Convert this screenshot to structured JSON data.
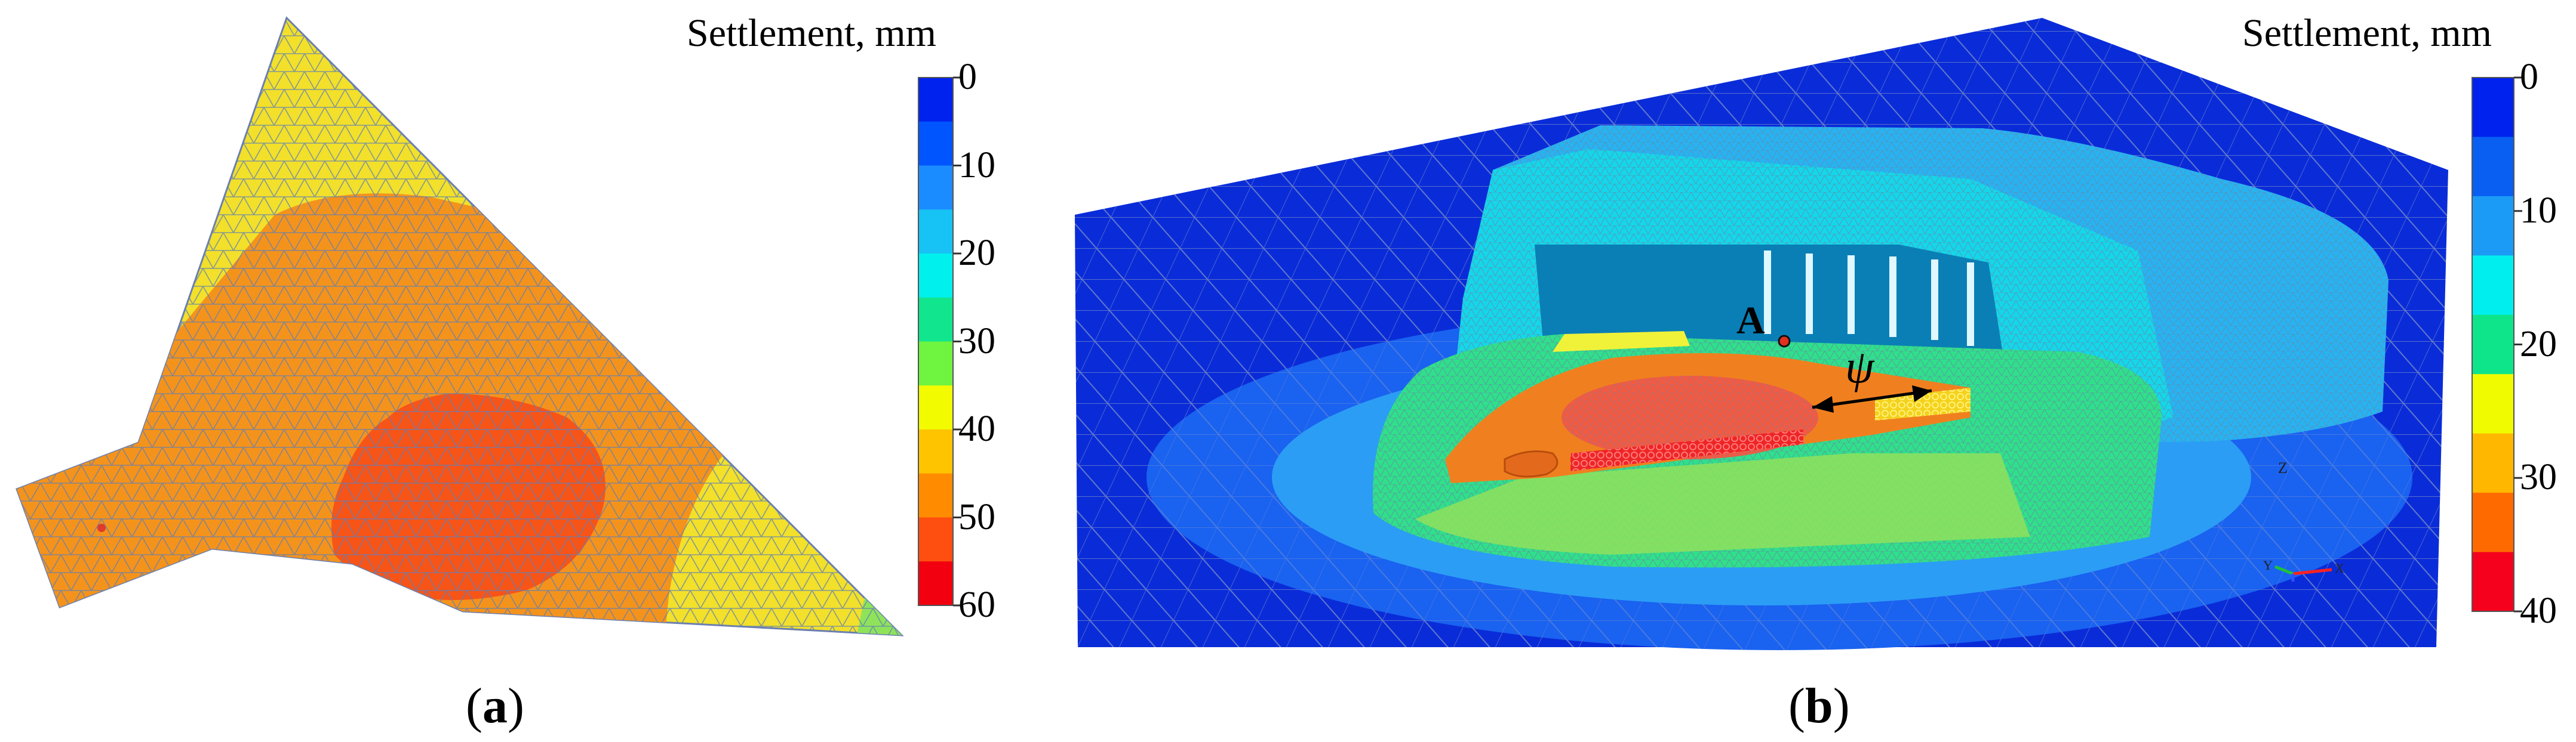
{
  "panels": [
    {
      "id": "a",
      "label": "a"
    },
    {
      "id": "b",
      "label": "b"
    }
  ],
  "colorbar_a": {
    "title": "Settlement, mm",
    "ticks": [
      "0",
      "10",
      "20",
      "30",
      "40",
      "50",
      "60"
    ],
    "colors": [
      "#0022ee",
      "#0055ff",
      "#1b8cff",
      "#17c2f5",
      "#00f0ee",
      "#11e58d",
      "#6ff43f",
      "#f2fb00",
      "#ffc400",
      "#ff8c00",
      "#ff4f10",
      "#f2000f"
    ]
  },
  "colorbar_b": {
    "title": "Settlement, mm",
    "ticks": [
      "0",
      "10",
      "20",
      "30",
      "40"
    ],
    "colors": [
      "#0022ee",
      "#0a5ff3",
      "#1b9bf5",
      "#00efee",
      "#0ee48a",
      "#f1fb00",
      "#ffb700",
      "#ff6a00",
      "#f5001d"
    ]
  },
  "annotations": {
    "point_label": "A",
    "angle_label": "ψ",
    "axis_z": "Z",
    "axis_y": "Y",
    "axis_x": "X"
  }
}
